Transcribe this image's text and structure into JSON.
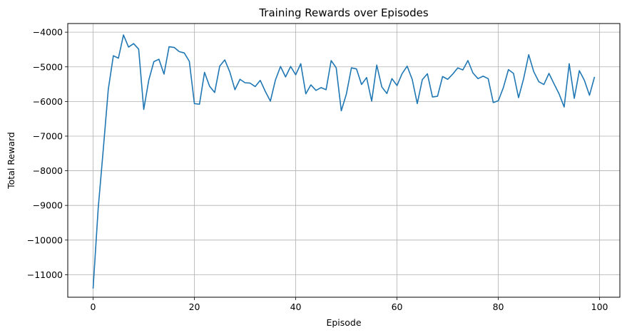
{
  "chart_data": {
    "type": "line",
    "title": "Training Rewards over Episodes",
    "xlabel": "Episode",
    "ylabel": "Total Reward",
    "xlim": [
      -5,
      104
    ],
    "ylim": [
      -11650,
      -3750
    ],
    "xticks": [
      0,
      20,
      40,
      60,
      80,
      100
    ],
    "yticks": [
      -11000,
      -10000,
      -9000,
      -8000,
      -7000,
      -6000,
      -5000,
      -4000
    ],
    "grid": true,
    "line_color": "#1f77b4",
    "series": [
      {
        "x": [
          0,
          1,
          2,
          3,
          4,
          5,
          6,
          7,
          8,
          9,
          10,
          11,
          12,
          13,
          14,
          15,
          16,
          17,
          18,
          19,
          20,
          21,
          22,
          23,
          24,
          25,
          26,
          27,
          28,
          29,
          30,
          31,
          32,
          33,
          34,
          35,
          36,
          37,
          38,
          39,
          40,
          41,
          42,
          43,
          44,
          45,
          46,
          47,
          48,
          49,
          50,
          51,
          52,
          53,
          54,
          55,
          56,
          57,
          58,
          59,
          60,
          61,
          62,
          63,
          64,
          65,
          66,
          67,
          68,
          69,
          70,
          71,
          72,
          73,
          74,
          75,
          76,
          77,
          78,
          79,
          80,
          81,
          82,
          83,
          84,
          85,
          86,
          87,
          88,
          89,
          90,
          91,
          92,
          93,
          94,
          95,
          96,
          97,
          98,
          99
        ],
        "values": [
          -11400,
          -9100,
          -7400,
          -5650,
          -4680,
          -4750,
          -4080,
          -4430,
          -4330,
          -4490,
          -6230,
          -5380,
          -4850,
          -4780,
          -5210,
          -4420,
          -4440,
          -4560,
          -4600,
          -4840,
          -6060,
          -6080,
          -5160,
          -5560,
          -5740,
          -4980,
          -4800,
          -5150,
          -5660,
          -5360,
          -5460,
          -5470,
          -5570,
          -5390,
          -5710,
          -5990,
          -5380,
          -4990,
          -5290,
          -4990,
          -5230,
          -4910,
          -5780,
          -5520,
          -5680,
          -5600,
          -5660,
          -4820,
          -5030,
          -6270,
          -5790,
          -5030,
          -5060,
          -5510,
          -5310,
          -5990,
          -4950,
          -5580,
          -5770,
          -5340,
          -5540,
          -5200,
          -4980,
          -5360,
          -6060,
          -5370,
          -5200,
          -5870,
          -5850,
          -5280,
          -5360,
          -5210,
          -5030,
          -5090,
          -4820,
          -5180,
          -5340,
          -5270,
          -5340,
          -6030,
          -5980,
          -5600,
          -5080,
          -5190,
          -5890,
          -5340,
          -4650,
          -5140,
          -5430,
          -5510,
          -5190,
          -5490,
          -5780,
          -6160,
          -4910,
          -5910,
          -5110,
          -5390,
          -5820,
          -5290
        ]
      }
    ]
  }
}
